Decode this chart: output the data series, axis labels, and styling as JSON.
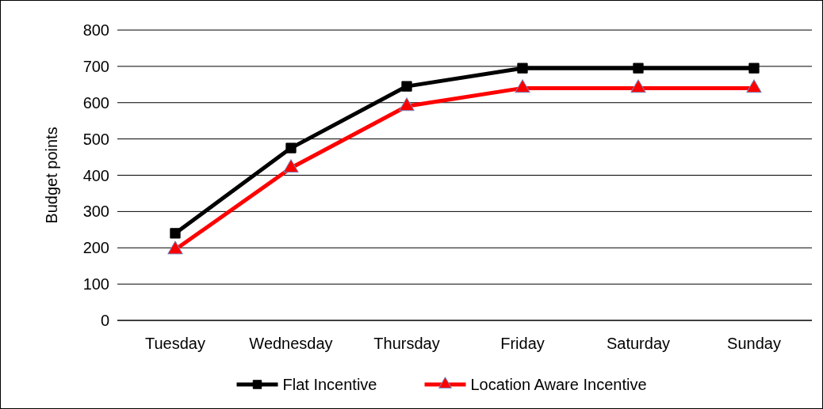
{
  "chart_data": {
    "type": "line",
    "ylabel": "Budget points",
    "categories": [
      "Tuesday",
      "Wednesday",
      "Thursday",
      "Friday",
      "Saturday",
      "Sunday"
    ],
    "series": [
      {
        "name": "Flat Incentive",
        "color": "#000000",
        "marker": "square",
        "values": [
          240,
          475,
          645,
          695,
          695,
          695
        ]
      },
      {
        "name": "Location Aware Incentive",
        "color": "#ff0000",
        "marker": "triangle",
        "values": [
          195,
          420,
          590,
          640,
          640,
          640
        ]
      }
    ],
    "ylim": [
      0,
      800
    ],
    "yticks": [
      0,
      100,
      200,
      300,
      400,
      500,
      600,
      700,
      800
    ],
    "grid": "y",
    "legend": "bottom",
    "line_style": "solid"
  }
}
